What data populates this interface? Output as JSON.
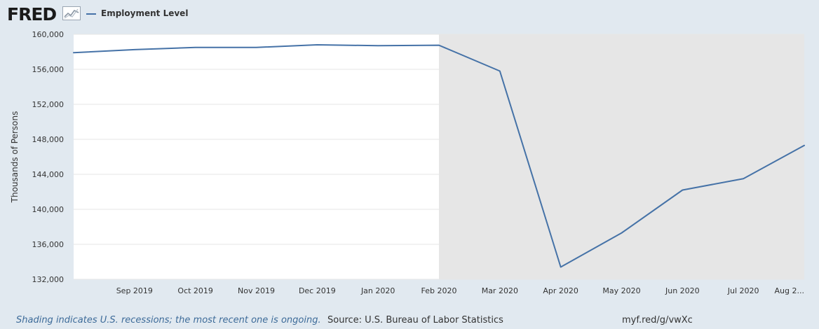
{
  "header": {
    "logo_text": "FRED",
    "legend_label": "Employment Level"
  },
  "colors": {
    "series": "#4572a7",
    "recession_shade": "#e6e6e6",
    "plot_bg": "#ffffff",
    "page_bg": "#e1e9f0"
  },
  "icons": {
    "logo_graph": "line-graph-icon"
  },
  "footer": {
    "shading_note": "Shading indicates U.S. recessions; the most recent one is ongoing.",
    "source": "Source: U.S. Bureau of Labor Statistics",
    "url": "myf.red/g/vwXc"
  },
  "chart_data": {
    "type": "line",
    "title": "",
    "xlabel": "",
    "ylabel": "Thousands of Persons",
    "x": [
      "2019-08",
      "2019-09",
      "2019-10",
      "2019-11",
      "2019-12",
      "2020-01",
      "2020-02",
      "2020-03",
      "2020-04",
      "2020-05",
      "2020-06",
      "2020-07",
      "2020-08"
    ],
    "x_tick_labels": [
      "Sep 2019",
      "Oct 2019",
      "Nov 2019",
      "Dec 2019",
      "Jan 2020",
      "Feb 2020",
      "Mar 2020",
      "Apr 2020",
      "May 2020",
      "Jun 2020",
      "Jul 2020",
      "Aug 2..."
    ],
    "series": [
      {
        "name": "Employment Level",
        "values": [
          157900,
          158250,
          158500,
          158500,
          158800,
          158700,
          158750,
          155800,
          133400,
          137300,
          142200,
          143500,
          147300
        ]
      }
    ],
    "ylim": [
      132000,
      160000
    ],
    "y_ticks": [
      132000,
      136000,
      140000,
      144000,
      148000,
      152000,
      156000,
      160000
    ],
    "y_tick_labels": [
      "132,000",
      "136,000",
      "140,000",
      "144,000",
      "148,000",
      "152,000",
      "156,000",
      "160,000"
    ],
    "recession": {
      "start": "2020-02",
      "end": "2020-08"
    },
    "grid": true,
    "legend": "top-left"
  }
}
